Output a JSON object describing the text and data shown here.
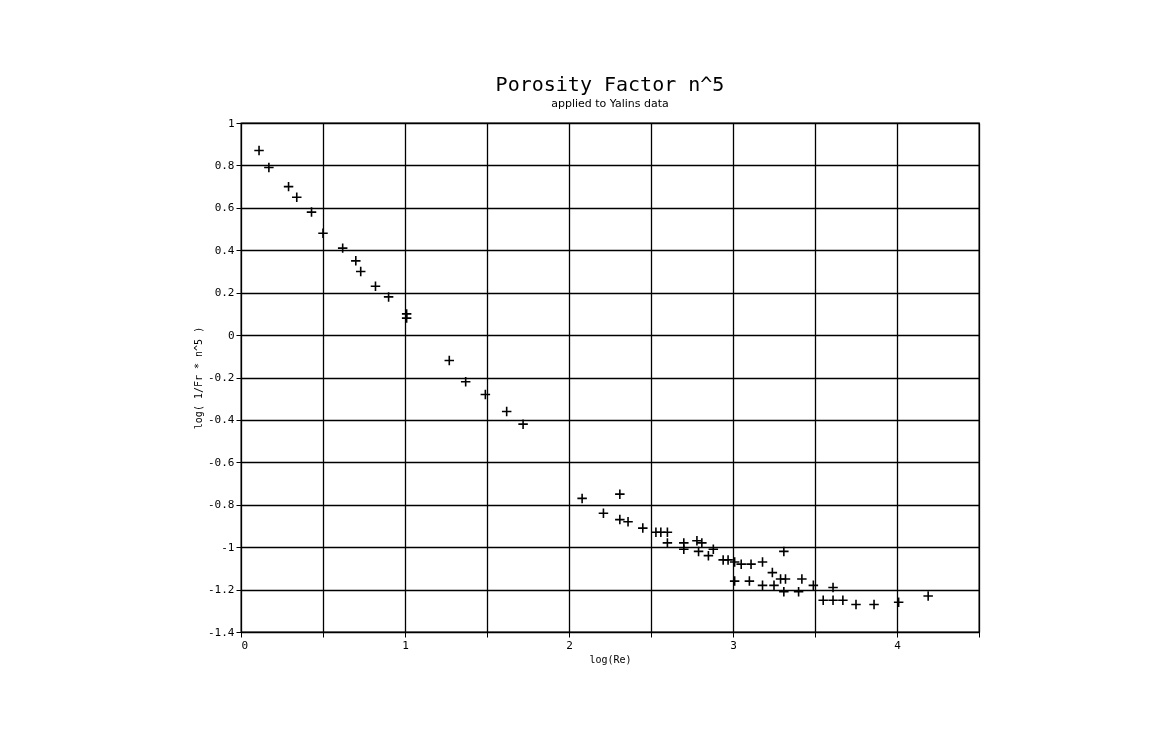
{
  "chart_data": {
    "type": "scatter",
    "title": "Porosity Factor n^5",
    "subtitle": "applied to Yalins data",
    "xlabel": "log(Re)",
    "ylabel": "log( 1/Fr * n^5 )",
    "x": [
      0.11,
      0.17,
      0.29,
      0.34,
      0.43,
      0.5,
      0.62,
      0.7,
      0.73,
      0.82,
      0.9,
      1.01,
      1.01,
      1.27,
      1.37,
      1.49,
      1.62,
      1.72,
      2.08,
      2.31,
      2.21,
      2.31,
      2.36,
      2.45,
      2.53,
      2.56,
      2.6,
      2.6,
      2.7,
      2.7,
      2.78,
      2.81,
      2.79,
      2.85,
      2.88,
      2.94,
      2.97,
      3.01,
      3.05,
      3.11,
      3.18,
      3.31,
      3.01,
      3.1,
      3.18,
      3.24,
      3.25,
      3.29,
      3.32,
      3.31,
      3.4,
      3.42,
      3.49,
      3.61,
      3.55,
      3.61,
      3.67,
      3.75,
      3.86,
      4.01,
      4.19
    ],
    "series": [
      {
        "color": "#000000",
        "values": [
          0.87,
          0.79,
          0.7,
          0.65,
          0.58,
          0.48,
          0.41,
          0.35,
          0.3,
          0.23,
          0.18,
          0.1,
          0.08,
          -0.12,
          -0.22,
          -0.28,
          -0.36,
          -0.42,
          -0.77,
          -0.75,
          -0.84,
          -0.87,
          -0.88,
          -0.91,
          -0.93,
          -0.93,
          -0.93,
          -0.98,
          -0.98,
          -1.01,
          -0.97,
          -0.98,
          -1.02,
          -1.04,
          -1.01,
          -1.06,
          -1.06,
          -1.07,
          -1.08,
          -1.08,
          -1.07,
          -1.02,
          -1.16,
          -1.16,
          -1.18,
          -1.12,
          -1.18,
          -1.15,
          -1.15,
          -1.21,
          -1.21,
          -1.15,
          -1.18,
          -1.19,
          -1.25,
          -1.25,
          -1.25,
          -1.27,
          -1.27,
          -1.26,
          -1.23
        ]
      }
    ],
    "xlim": [
      0,
      4.5
    ],
    "xticks": [
      0,
      {
        "value": 0.5,
        "label": null
      },
      1,
      {
        "value": 1.5,
        "label": null
      },
      2,
      {
        "value": 2.5,
        "label": null
      },
      3,
      {
        "value": 3.5,
        "label": null
      },
      4,
      {
        "value": 4.5,
        "label": null
      }
    ],
    "ylim": [
      -1.4,
      1
    ],
    "yticks": [
      -1.4,
      -1.2,
      -1,
      -0.8,
      -0.6,
      -0.4,
      -0.2,
      0,
      0.2,
      0.4,
      0.6,
      0.8,
      1
    ],
    "grid": true,
    "marker": "cross"
  }
}
